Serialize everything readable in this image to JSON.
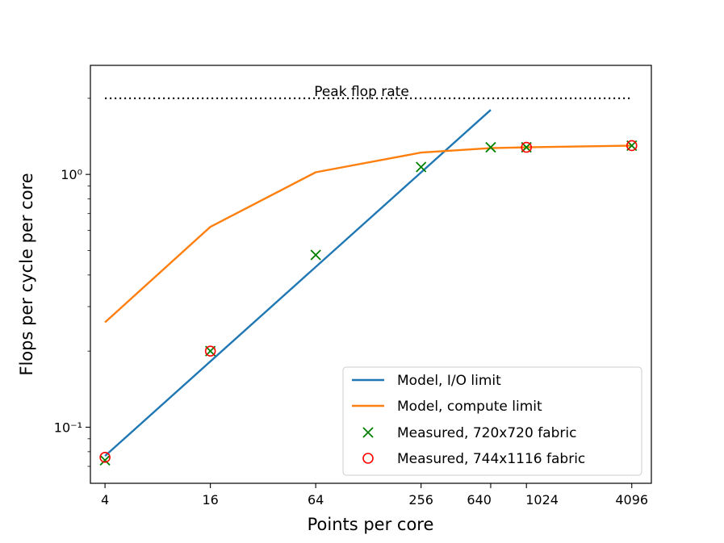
{
  "chart_data": {
    "type": "line",
    "title": "",
    "xlabel": "Points per core",
    "ylabel": "Flops per cycle per core",
    "x_scale": "log2",
    "y_scale": "log10",
    "xlim": [
      3.3,
      5300
    ],
    "ylim": [
      0.06,
      2.7
    ],
    "x_ticks": [
      4,
      16,
      64,
      256,
      640,
      1024,
      4096
    ],
    "x_tick_labels": [
      "4",
      "16",
      "64",
      "256",
      "640",
      "1024",
      "4096"
    ],
    "y_ticks": [
      0.1,
      1.0
    ],
    "y_tick_labels": [
      "10⁻¹",
      "10⁰"
    ],
    "grid": false,
    "legend_position": "lower right",
    "annotations": [
      {
        "text": "Peak flop rate",
        "x": 64,
        "y": 2.0
      }
    ],
    "reference_lines": [
      {
        "name": "Peak flop rate",
        "style": "dotted",
        "color": "#000000",
        "x": [
          4,
          4096
        ],
        "y": [
          2.0,
          2.0
        ]
      }
    ],
    "series": [
      {
        "name": "Model, I/O limit",
        "kind": "line",
        "color": "#1f77b4",
        "x": [
          4,
          640
        ],
        "y": [
          0.077,
          1.8
        ]
      },
      {
        "name": "Model, compute limit",
        "kind": "line",
        "color": "#ff7f0e",
        "x": [
          4,
          16,
          64,
          256,
          640,
          1024,
          4096
        ],
        "y": [
          0.26,
          0.62,
          1.02,
          1.22,
          1.27,
          1.28,
          1.3
        ]
      },
      {
        "name": "Measured, 720x720 fabric",
        "kind": "marker",
        "marker": "x",
        "color": "#008000",
        "x": [
          4,
          16,
          64,
          256,
          640,
          1024,
          4096
        ],
        "y": [
          0.074,
          0.2,
          0.48,
          1.07,
          1.28,
          1.28,
          1.3
        ]
      },
      {
        "name": "Measured, 744x1116 fabric",
        "kind": "marker",
        "marker": "o",
        "color": "#ff0000",
        "x": [
          4,
          16,
          1024,
          4096
        ],
        "y": [
          0.076,
          0.2,
          1.28,
          1.3
        ]
      }
    ]
  }
}
